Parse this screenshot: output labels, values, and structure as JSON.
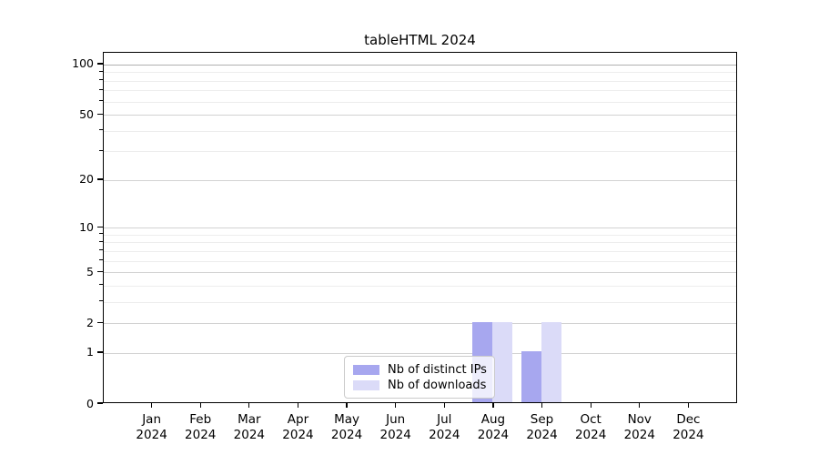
{
  "chart_data": {
    "type": "bar",
    "title": "tableHTML 2024",
    "categories": [
      "Jan",
      "Feb",
      "Mar",
      "Apr",
      "May",
      "Jun",
      "Jul",
      "Aug",
      "Sep",
      "Oct",
      "Nov",
      "Dec"
    ],
    "year": "2024",
    "series": [
      {
        "name": "Nb of distinct IPs",
        "color": "#a7a7ef",
        "values": [
          0,
          0,
          0,
          0,
          0,
          0,
          0,
          2,
          1,
          0,
          0,
          0
        ]
      },
      {
        "name": "Nb of downloads",
        "color": "#dbdbf8",
        "values": [
          0,
          0,
          0,
          0,
          0,
          0,
          0,
          2,
          2,
          0,
          0,
          0
        ]
      }
    ],
    "xlabel": "",
    "ylabel": "",
    "y_axis": {
      "scale": "log1p",
      "tick_values": [
        0,
        1,
        2,
        5,
        10,
        20,
        50,
        100
      ],
      "tick_labels": [
        "0",
        "1",
        "2",
        "5",
        "10",
        "20",
        "50",
        "100"
      ],
      "minor_tick_values": [
        3,
        4,
        6,
        7,
        8,
        9,
        30,
        40,
        60,
        70,
        80,
        90
      ],
      "range": [
        0,
        115
      ]
    },
    "grid": true,
    "legend": {
      "position": "lower center",
      "entries": [
        "Nb of distinct IPs",
        "Nb of downloads"
      ]
    }
  },
  "colors": {
    "major_grid": "#d2d2d2",
    "minor_grid": "#ededed",
    "top_grid_100": "#b0b0b0",
    "spine": "#000000",
    "background": "#ffffff"
  }
}
